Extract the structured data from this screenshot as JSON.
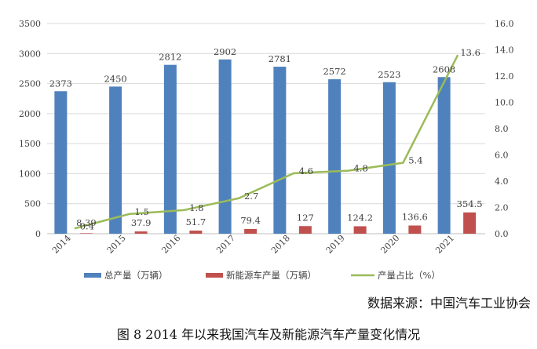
{
  "chart_data": {
    "type": "bar",
    "title": "",
    "categories": [
      "2014",
      "2015",
      "2016",
      "2017",
      "2018",
      "2019",
      "2020",
      "2021"
    ],
    "series": [
      {
        "name": "总产量（万辆）",
        "kind": "bar",
        "axis": "left",
        "color": "#4f81bd",
        "values": [
          2373,
          2450,
          2812,
          2902,
          2781,
          2572,
          2523,
          2608
        ],
        "labels": [
          "2373",
          "2450",
          "2812",
          "2902",
          "2781",
          "2572",
          "2523",
          "2608"
        ]
      },
      {
        "name": "新能源车产量（万辆）",
        "kind": "bar",
        "axis": "left",
        "color": "#c0504d",
        "values": [
          8.39,
          37.9,
          51.7,
          79.4,
          127,
          124.2,
          136.6,
          354.5
        ],
        "labels": [
          "8.39",
          "37.9",
          "51.7",
          "79.4",
          "127",
          "124.2",
          "136.6",
          "354.5"
        ]
      },
      {
        "name": "产量占比（%）",
        "kind": "line",
        "axis": "right",
        "color": "#9bbb59",
        "values": [
          0.4,
          1.5,
          1.8,
          2.7,
          4.6,
          4.8,
          5.4,
          13.6
        ],
        "labels": [
          "0.4",
          "1.5",
          "1.8",
          "2.7",
          "4.6",
          "4.8",
          "5.4",
          "13.6"
        ]
      }
    ],
    "ylim": [
      0,
      3500
    ],
    "y_ticks": [
      "0",
      "500",
      "1000",
      "1500",
      "2000",
      "2500",
      "3000",
      "3500"
    ],
    "y2lim": [
      0,
      16
    ],
    "y2_ticks": [
      "0.0",
      "2.0",
      "4.0",
      "6.0",
      "8.0",
      "10.0",
      "12.0",
      "14.0",
      "16.0"
    ],
    "legend_position": "bottom"
  },
  "source_text": "数据来源：中国汽车工业协会",
  "caption_text": "图 8   2014 年以来我国汽车及新能源汽车产量变化情况"
}
